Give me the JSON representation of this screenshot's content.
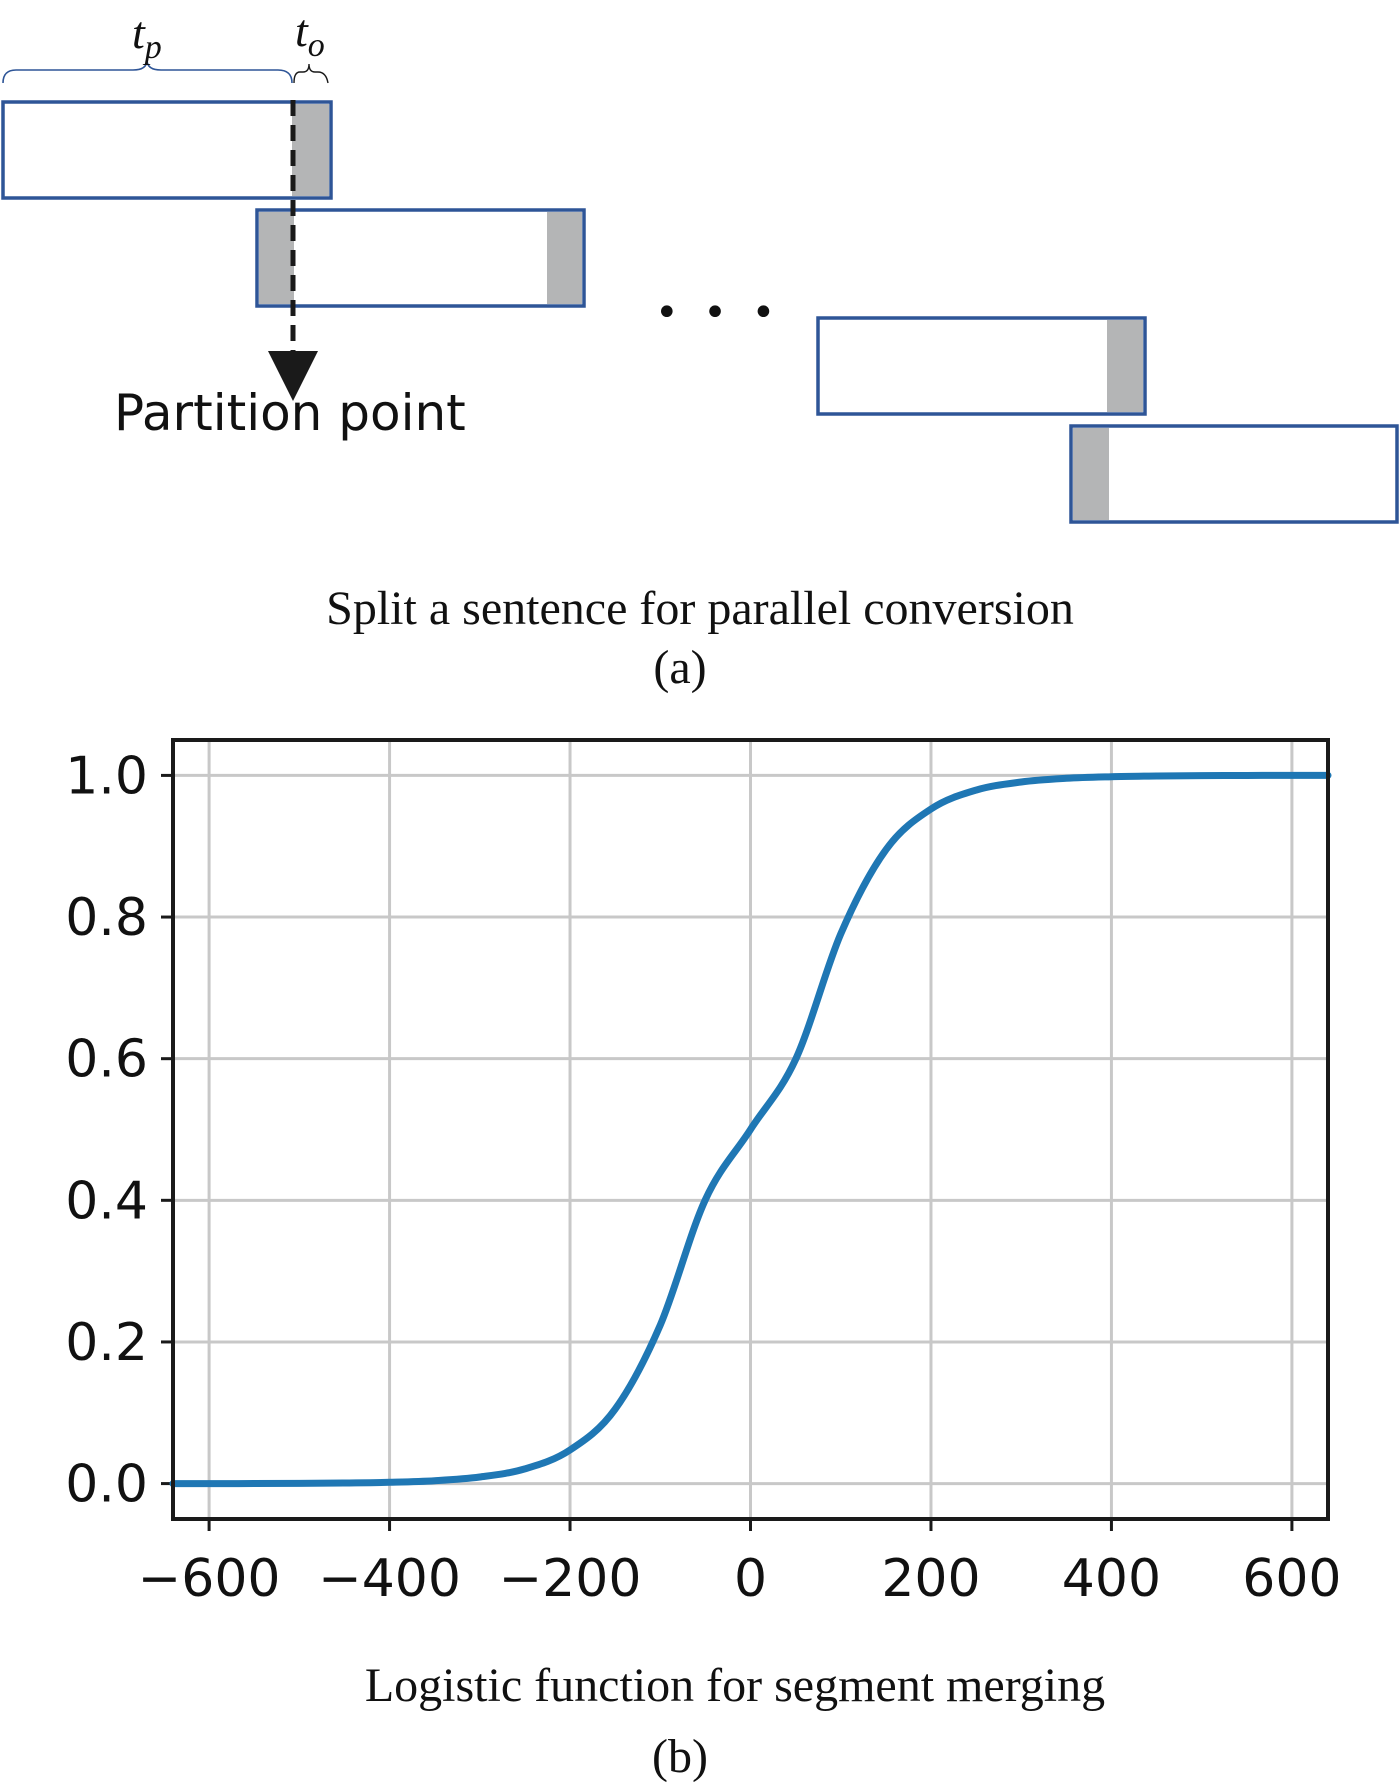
{
  "diagram": {
    "labels": {
      "t_p": "t",
      "t_p_sub": "p",
      "t_o": "t",
      "t_o_sub": "o",
      "partition": "Partition point",
      "ellipsis": "• • •"
    },
    "caption": "Split a sentence for parallel conversion",
    "caption_tag": "(a)",
    "colors": {
      "box_border": "#2e5597",
      "overlap_fill": "#b4b5b6",
      "arrow": "#1a1a1a"
    }
  },
  "chart_data": {
    "type": "line",
    "function": "logistic",
    "x": [
      -640,
      -600,
      -550,
      -500,
      -450,
      -400,
      -350,
      -300,
      -250,
      -200,
      -150,
      -100,
      -50,
      0,
      50,
      100,
      150,
      200,
      250,
      300,
      350,
      400,
      450,
      500,
      550,
      600,
      640
    ],
    "y": [
      0.0,
      0.0,
      0.0001,
      0.0003,
      0.0008,
      0.0018,
      0.0041,
      0.0093,
      0.0208,
      0.0474,
      0.105,
      0.224,
      0.401,
      0.5,
      0.599,
      0.776,
      0.895,
      0.9526,
      0.9792,
      0.9907,
      0.9959,
      0.9982,
      0.9992,
      0.9997,
      0.9999,
      1.0,
      1.0
    ],
    "xlim": [
      -640,
      640
    ],
    "ylim": [
      -0.05,
      1.05
    ],
    "xticks": [
      -600,
      -400,
      -200,
      0,
      200,
      400,
      600
    ],
    "xtick_labels": [
      "−600",
      "−400",
      "−200",
      "0",
      "200",
      "400",
      "600"
    ],
    "yticks": [
      0.0,
      0.2,
      0.4,
      0.6,
      0.8,
      1.0
    ],
    "ytick_labels": [
      "0.0",
      "0.2",
      "0.4",
      "0.6",
      "0.8",
      "1.0"
    ],
    "grid": true,
    "line_color": "#1f77b4",
    "grid_color": "#c8c8c8",
    "caption": "Logistic function for segment merging",
    "caption_tag": "(b)"
  }
}
